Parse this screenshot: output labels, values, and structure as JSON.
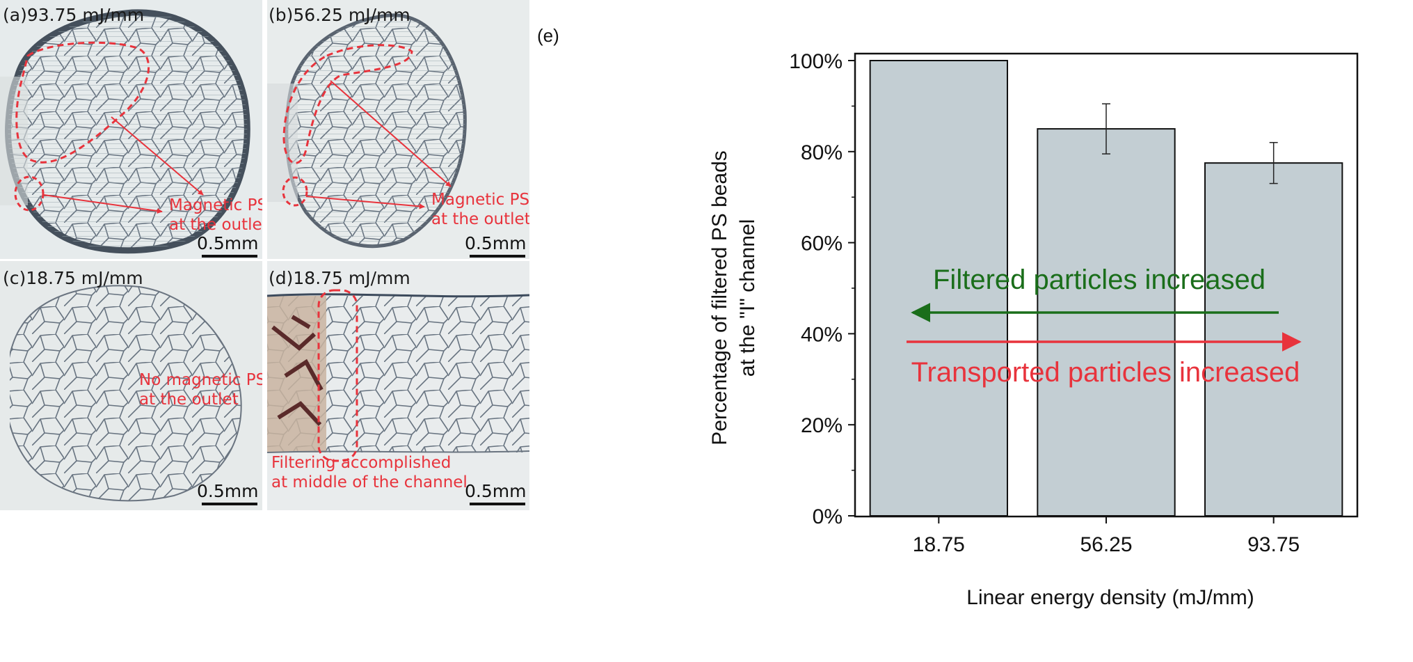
{
  "colors": {
    "annotation_red": "#e8333c",
    "arrow_green": "#1a6e1a",
    "bar_fill": "#c3ced3",
    "photo_background": "#e8ecec",
    "cell_edge": "#3c4a5c"
  },
  "panels": [
    {
      "label": "(a)93.75 mJ/mm",
      "notes": [
        "Magnetic PS",
        "at the outlet"
      ],
      "scale": "0.5mm"
    },
    {
      "label": "(b)56.25 mJ/mm",
      "notes": [
        "Magnetic PS",
        "at the outlet"
      ],
      "scale": "0.5mm"
    },
    {
      "label": "(c)18.75 mJ/mm",
      "notes": [
        "No magnetic PS",
        "at the outlet"
      ],
      "scale": "0.5mm"
    },
    {
      "label": "(d)18.75 mJ/mm",
      "notes": [
        "Filtering accomplished",
        "at middle of the channel"
      ],
      "scale": "0.5mm"
    }
  ],
  "chart_data": {
    "type": "bar",
    "panel_label": "(e)",
    "categories": [
      "18.75",
      "56.25",
      "93.75"
    ],
    "values": [
      100,
      85,
      77.5
    ],
    "error": [
      0,
      5.5,
      4.5
    ],
    "yticks": [
      "0%",
      "20%",
      "40%",
      "60%",
      "80%",
      "100%"
    ],
    "ylim": [
      0,
      100
    ],
    "xlabel": "Linear energy density (mJ/mm)",
    "ylabel": [
      "Percentage of filtered PS beads",
      "at the \"I\" channel"
    ],
    "annotations": {
      "filtered": "Filtered particles increased",
      "transported": "Transported particles increased"
    },
    "grid": false
  }
}
